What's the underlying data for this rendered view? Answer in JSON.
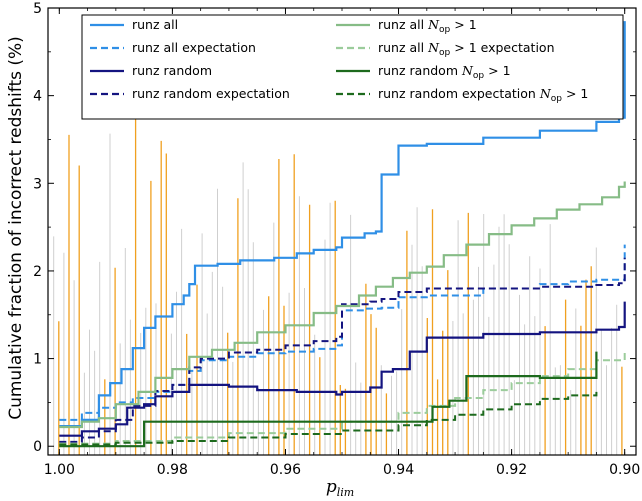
{
  "chart_data": {
    "type": "line",
    "xlabel": "p",
    "xlabel_sub": "lim",
    "ylabel": "Cumulative fraction of incorrect redshifts (%)",
    "xlim": [
      1.002,
      0.898
    ],
    "ylim": [
      -0.1,
      5.0
    ],
    "x_ticks": [
      1.0,
      0.98,
      0.96,
      0.94,
      0.92,
      0.9
    ],
    "x_tick_labels": [
      "1.00",
      "0.98",
      "0.96",
      "0.94",
      "0.92",
      "0.90"
    ],
    "y_ticks": [
      0,
      1,
      2,
      3,
      4,
      5
    ],
    "y_tick_labels": [
      "0",
      "1",
      "2",
      "3",
      "4",
      "5"
    ],
    "grid": false,
    "legend_position": "top",
    "series": [
      {
        "name": "runz all",
        "color": "#2f8fe6",
        "dash": "solid",
        "width": 2.2,
        "points": [
          [
            1.0,
            0.23
          ],
          [
            0.996,
            0.3
          ],
          [
            0.993,
            0.58
          ],
          [
            0.991,
            0.72
          ],
          [
            0.989,
            0.88
          ],
          [
            0.987,
            1.12
          ],
          [
            0.985,
            1.35
          ],
          [
            0.983,
            1.48
          ],
          [
            0.98,
            1.62
          ],
          [
            0.978,
            1.72
          ],
          [
            0.977,
            1.85
          ],
          [
            0.976,
            2.06
          ],
          [
            0.974,
            2.06
          ],
          [
            0.972,
            2.08
          ],
          [
            0.968,
            2.12
          ],
          [
            0.962,
            2.15
          ],
          [
            0.958,
            2.2
          ],
          [
            0.955,
            2.24
          ],
          [
            0.951,
            2.27
          ],
          [
            0.95,
            2.38
          ],
          [
            0.946,
            2.43
          ],
          [
            0.944,
            2.45
          ],
          [
            0.943,
            3.1
          ],
          [
            0.941,
            3.1
          ],
          [
            0.94,
            3.43
          ],
          [
            0.935,
            3.45
          ],
          [
            0.925,
            3.52
          ],
          [
            0.915,
            3.6
          ],
          [
            0.905,
            3.7
          ],
          [
            0.901,
            3.75
          ],
          [
            0.9,
            4.85
          ]
        ]
      },
      {
        "name": "runz all expectation",
        "color": "#2f8fe6",
        "dash": "7,4",
        "width": 2.0,
        "points": [
          [
            1.0,
            0.3
          ],
          [
            0.996,
            0.38
          ],
          [
            0.993,
            0.44
          ],
          [
            0.99,
            0.5
          ],
          [
            0.987,
            0.55
          ],
          [
            0.983,
            0.62
          ],
          [
            0.98,
            0.7
          ],
          [
            0.977,
            0.86
          ],
          [
            0.975,
            0.98
          ],
          [
            0.97,
            1.02
          ],
          [
            0.965,
            1.06
          ],
          [
            0.96,
            1.08
          ],
          [
            0.955,
            1.11
          ],
          [
            0.951,
            1.15
          ],
          [
            0.95,
            1.55
          ],
          [
            0.946,
            1.57
          ],
          [
            0.943,
            1.58
          ],
          [
            0.94,
            1.7
          ],
          [
            0.935,
            1.72
          ],
          [
            0.925,
            1.8
          ],
          [
            0.915,
            1.85
          ],
          [
            0.91,
            1.88
          ],
          [
            0.905,
            1.9
          ],
          [
            0.9,
            2.3
          ]
        ]
      },
      {
        "name": "runz random",
        "color": "#141480",
        "dash": "solid",
        "width": 2.2,
        "points": [
          [
            1.0,
            0.12
          ],
          [
            0.996,
            0.17
          ],
          [
            0.993,
            0.2
          ],
          [
            0.99,
            0.25
          ],
          [
            0.988,
            0.44
          ],
          [
            0.985,
            0.48
          ],
          [
            0.983,
            0.57
          ],
          [
            0.98,
            0.62
          ],
          [
            0.977,
            0.7
          ],
          [
            0.97,
            0.68
          ],
          [
            0.965,
            0.64
          ],
          [
            0.958,
            0.62
          ],
          [
            0.951,
            0.59
          ],
          [
            0.95,
            0.62
          ],
          [
            0.945,
            0.67
          ],
          [
            0.943,
            0.85
          ],
          [
            0.941,
            0.88
          ],
          [
            0.938,
            1.08
          ],
          [
            0.935,
            1.24
          ],
          [
            0.925,
            1.28
          ],
          [
            0.915,
            1.3
          ],
          [
            0.905,
            1.33
          ],
          [
            0.901,
            1.36
          ],
          [
            0.9,
            1.65
          ]
        ]
      },
      {
        "name": "runz random expectation",
        "color": "#141480",
        "dash": "7,4",
        "width": 2.0,
        "points": [
          [
            1.0,
            0.05
          ],
          [
            0.996,
            0.1
          ],
          [
            0.993,
            0.17
          ],
          [
            0.99,
            0.3
          ],
          [
            0.987,
            0.46
          ],
          [
            0.983,
            0.63
          ],
          [
            0.98,
            0.7
          ],
          [
            0.977,
            0.9
          ],
          [
            0.975,
            1.0
          ],
          [
            0.97,
            1.07
          ],
          [
            0.965,
            1.1
          ],
          [
            0.96,
            1.15
          ],
          [
            0.955,
            1.2
          ],
          [
            0.951,
            1.25
          ],
          [
            0.95,
            1.62
          ],
          [
            0.945,
            1.65
          ],
          [
            0.943,
            1.68
          ],
          [
            0.94,
            1.76
          ],
          [
            0.935,
            1.8
          ],
          [
            0.925,
            1.8
          ],
          [
            0.915,
            1.82
          ],
          [
            0.905,
            1.84
          ],
          [
            0.901,
            1.86
          ],
          [
            0.9,
            2.15
          ]
        ]
      },
      {
        "name": "runz all N_op > 1",
        "color": "#86bc86",
        "dash": "solid",
        "width": 2.2,
        "points": [
          [
            1.0,
            0.22
          ],
          [
            0.996,
            0.28
          ],
          [
            0.993,
            0.32
          ],
          [
            0.99,
            0.48
          ],
          [
            0.986,
            0.62
          ],
          [
            0.983,
            0.78
          ],
          [
            0.98,
            0.88
          ],
          [
            0.977,
            1.02
          ],
          [
            0.973,
            1.1
          ],
          [
            0.969,
            1.18
          ],
          [
            0.965,
            1.3
          ],
          [
            0.96,
            1.38
          ],
          [
            0.955,
            1.52
          ],
          [
            0.951,
            1.6
          ],
          [
            0.947,
            1.72
          ],
          [
            0.944,
            1.82
          ],
          [
            0.941,
            1.92
          ],
          [
            0.938,
            1.98
          ],
          [
            0.935,
            2.05
          ],
          [
            0.932,
            2.18
          ],
          [
            0.928,
            2.3
          ],
          [
            0.924,
            2.42
          ],
          [
            0.92,
            2.52
          ],
          [
            0.916,
            2.6
          ],
          [
            0.912,
            2.7
          ],
          [
            0.908,
            2.76
          ],
          [
            0.904,
            2.84
          ],
          [
            0.901,
            2.96
          ],
          [
            0.9,
            3.02
          ]
        ]
      },
      {
        "name": "runz all N_op > 1 expectation",
        "color": "#9bcc9b",
        "dash": "7,4",
        "width": 2.0,
        "points": [
          [
            1.0,
            0.03
          ],
          [
            0.99,
            0.06
          ],
          [
            0.98,
            0.1
          ],
          [
            0.97,
            0.15
          ],
          [
            0.96,
            0.2
          ],
          [
            0.95,
            0.28
          ],
          [
            0.94,
            0.38
          ],
          [
            0.935,
            0.46
          ],
          [
            0.93,
            0.55
          ],
          [
            0.925,
            0.64
          ],
          [
            0.92,
            0.72
          ],
          [
            0.915,
            0.8
          ],
          [
            0.91,
            0.88
          ],
          [
            0.905,
            0.98
          ],
          [
            0.9,
            1.1
          ]
        ]
      },
      {
        "name": "runz random N_op > 1",
        "color": "#1d6a1d",
        "dash": "solid",
        "width": 2.2,
        "points": [
          [
            1.0,
            0.0
          ],
          [
            0.992,
            0.0
          ],
          [
            0.986,
            0.0
          ],
          [
            0.985,
            0.28
          ],
          [
            0.975,
            0.28
          ],
          [
            0.965,
            0.28
          ],
          [
            0.955,
            0.28
          ],
          [
            0.945,
            0.28
          ],
          [
            0.937,
            0.28
          ],
          [
            0.934,
            0.45
          ],
          [
            0.931,
            0.52
          ],
          [
            0.928,
            0.8
          ],
          [
            0.92,
            0.8
          ],
          [
            0.915,
            0.78
          ],
          [
            0.912,
            0.78
          ],
          [
            0.905,
            1.08
          ]
        ]
      },
      {
        "name": "runz random expectation N_op > 1",
        "color": "#1d6a1d",
        "dash": "7,4",
        "width": 2.0,
        "points": [
          [
            1.0,
            0.02
          ],
          [
            0.99,
            0.04
          ],
          [
            0.98,
            0.06
          ],
          [
            0.97,
            0.1
          ],
          [
            0.96,
            0.14
          ],
          [
            0.95,
            0.18
          ],
          [
            0.94,
            0.24
          ],
          [
            0.935,
            0.3
          ],
          [
            0.93,
            0.36
          ],
          [
            0.925,
            0.42
          ],
          [
            0.92,
            0.48
          ],
          [
            0.915,
            0.54
          ],
          [
            0.91,
            0.58
          ],
          [
            0.905,
            0.62
          ]
        ]
      }
    ],
    "error_bars": {
      "colors": [
        "#cfcfcf",
        "#f0a020"
      ],
      "count": 112,
      "x_range": [
        1.001,
        0.9005
      ]
    },
    "legend": [
      {
        "label": "runz all",
        "color": "#2f8fe6",
        "dash": "solid",
        "column": 0,
        "row": 0
      },
      {
        "label": "runz all expectation",
        "color": "#2f8fe6",
        "dash": "dashed",
        "column": 0,
        "row": 1
      },
      {
        "label": "runz random",
        "color": "#141480",
        "dash": "solid",
        "column": 0,
        "row": 2
      },
      {
        "label": "runz random expectation",
        "color": "#141480",
        "dash": "dashed",
        "column": 0,
        "row": 3
      },
      {
        "label": "runz all",
        "math": "N",
        "math_sub": "op",
        "suffix": " > 1",
        "color": "#86bc86",
        "dash": "solid",
        "column": 1,
        "row": 0
      },
      {
        "label": "runz all",
        "math": "N",
        "math_sub": "op",
        "suffix": " > 1 expectation",
        "color": "#9bcc9b",
        "dash": "dashed",
        "column": 1,
        "row": 1
      },
      {
        "label": "runz random",
        "math": "N",
        "math_sub": "op",
        "suffix": " > 1",
        "color": "#1d6a1d",
        "dash": "solid",
        "column": 1,
        "row": 2
      },
      {
        "label": "runz random expectation",
        "math": "N",
        "math_sub": "op",
        "suffix": " > 1",
        "color": "#1d6a1d",
        "dash": "dashed",
        "column": 1,
        "row": 3
      }
    ]
  }
}
